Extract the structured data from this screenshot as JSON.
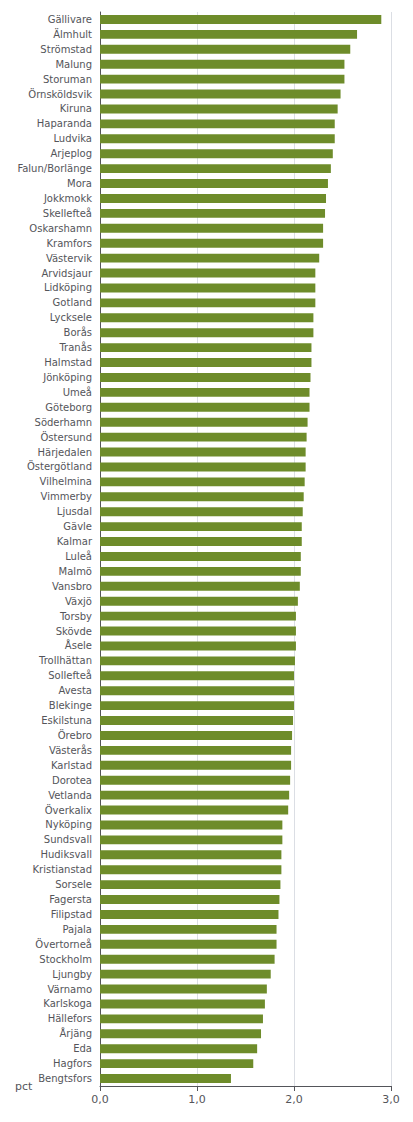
{
  "chart_data": {
    "type": "bar",
    "orientation": "horizontal",
    "xlabel": "pct",
    "categories": [
      "Gällivare",
      "Älmhult",
      "Strömstad",
      "Malung",
      "Storuman",
      "Örnsköldsvik",
      "Kiruna",
      "Haparanda",
      "Ludvika",
      "Arjeplog",
      "Falun/Borlänge",
      "Mora",
      "Jokkmokk",
      "Skellefteå",
      "Oskarshamn",
      "Kramfors",
      "Västervik",
      "Arvidsjaur",
      "Lidköping",
      "Gotland",
      "Lycksele",
      "Borås",
      "Tranås",
      "Halmstad",
      "Jönköping",
      "Umeå",
      "Göteborg",
      "Söderhamn",
      "Östersund",
      "Härjedalen",
      "Östergötland",
      "Vilhelmina",
      "Vimmerby",
      "Ljusdal",
      "Gävle",
      "Kalmar",
      "Luleå",
      "Malmö",
      "Vansbro",
      "Växjö",
      "Torsby",
      "Skövde",
      "Åsele",
      "Trollhättan",
      "Sollefteå",
      "Avesta",
      "Blekinge",
      "Eskilstuna",
      "Örebro",
      "Västerås",
      "Karlstad",
      "Dorotea",
      "Vetlanda",
      "Överkalix",
      "Nyköping",
      "Sundsvall",
      "Hudiksvall",
      "Kristianstad",
      "Sorsele",
      "Fagersta",
      "Filipstad",
      "Pajala",
      "Övertorneå",
      "Stockholm",
      "Ljungby",
      "Värnamo",
      "Karlskoga",
      "Hällefors",
      "Årjäng",
      "Eda",
      "Hagfors",
      "Bengtsfors"
    ],
    "values": [
      2.9,
      2.65,
      2.58,
      2.52,
      2.52,
      2.48,
      2.45,
      2.42,
      2.42,
      2.4,
      2.38,
      2.35,
      2.33,
      2.32,
      2.3,
      2.3,
      2.26,
      2.22,
      2.22,
      2.22,
      2.2,
      2.2,
      2.18,
      2.18,
      2.17,
      2.16,
      2.16,
      2.14,
      2.13,
      2.12,
      2.12,
      2.11,
      2.1,
      2.09,
      2.08,
      2.08,
      2.07,
      2.07,
      2.06,
      2.04,
      2.02,
      2.02,
      2.02,
      2.01,
      2.0,
      2.0,
      2.0,
      1.99,
      1.98,
      1.97,
      1.97,
      1.96,
      1.95,
      1.94,
      1.88,
      1.88,
      1.87,
      1.87,
      1.86,
      1.85,
      1.84,
      1.82,
      1.82,
      1.8,
      1.76,
      1.72,
      1.7,
      1.68,
      1.66,
      1.62,
      1.58,
      1.35
    ],
    "color": "#6e8c2a",
    "xlim": [
      0,
      3.0
    ],
    "xticks": [
      {
        "value": 0.0,
        "label": "0,0"
      },
      {
        "value": 1.0,
        "label": "1,0"
      },
      {
        "value": 2.0,
        "label": "2,0"
      },
      {
        "value": 3.0,
        "label": "3,0"
      }
    ],
    "grid": true
  }
}
